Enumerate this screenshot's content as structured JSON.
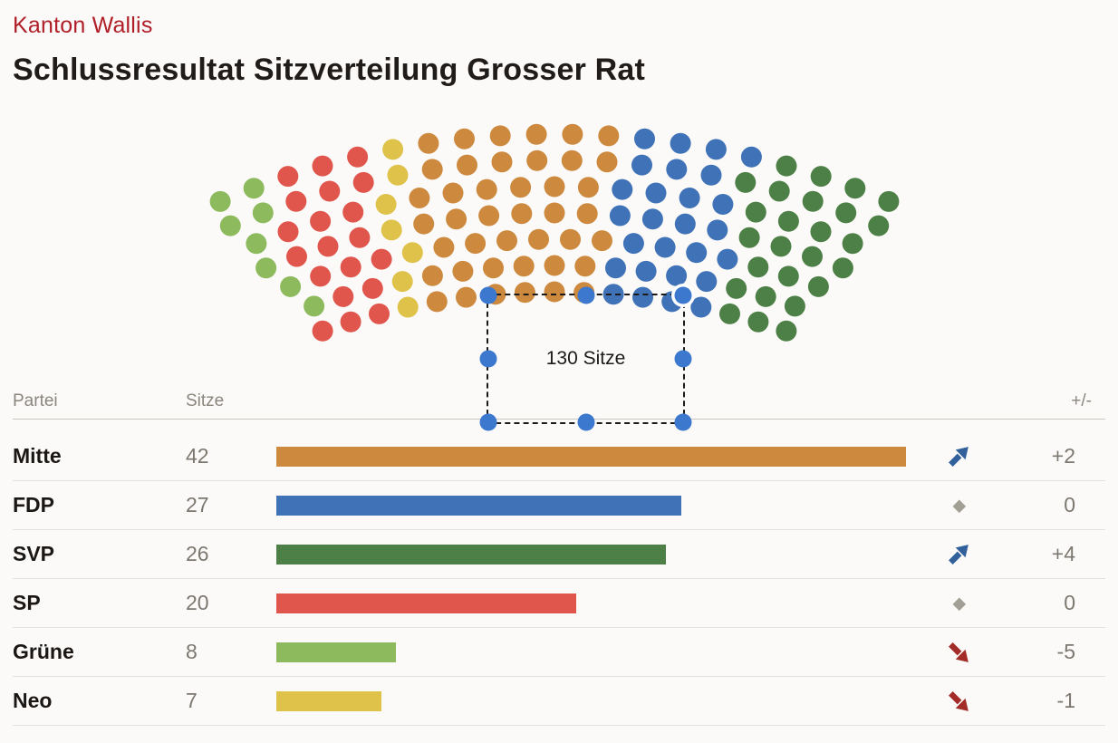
{
  "header": {
    "kicker": "Kanton Wallis",
    "title": "Schlussresultat Sitzverteilung Grosser Rat"
  },
  "selection": {
    "label": "130 Sitze"
  },
  "table": {
    "headers": {
      "party": "Partei",
      "seats": "Sitze",
      "change": "+/-"
    }
  },
  "chart_data": {
    "type": "parliament",
    "title": "Schlussresultat Sitzverteilung Grosser Rat",
    "region": "Kanton Wallis",
    "total_seats": 130,
    "annotation": "130 Sitze",
    "rows": 7,
    "hemicycle_order_left_to_right": [
      "Grüne",
      "SP",
      "Neo",
      "Mitte",
      "FDP",
      "SVP"
    ],
    "parties": [
      {
        "name": "Mitte",
        "seats": 42,
        "change_label": "+2",
        "trend": "up",
        "color": "#CD8A3F"
      },
      {
        "name": "FDP",
        "seats": 27,
        "change_label": "0",
        "trend": "flat",
        "color": "#3F72B7"
      },
      {
        "name": "SVP",
        "seats": 26,
        "change_label": "+4",
        "trend": "up",
        "color": "#4D8046"
      },
      {
        "name": "SP",
        "seats": 20,
        "change_label": "0",
        "trend": "flat",
        "color": "#E0564C"
      },
      {
        "name": "Grüne",
        "seats": 8,
        "change_label": "-5",
        "trend": "down",
        "color": "#8CBA5C"
      },
      {
        "name": "Neo",
        "seats": 7,
        "change_label": "-1",
        "trend": "down",
        "color": "#DFC24A"
      }
    ],
    "trend_colors": {
      "up": "#31609A",
      "down": "#A32C28",
      "flat": "#A29F94"
    },
    "selection_handle_color": "#3B78CE",
    "bar_axis_max_seats": 42
  }
}
